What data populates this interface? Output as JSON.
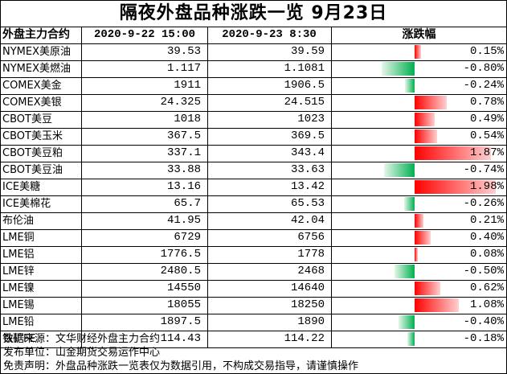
{
  "chart_data": {
    "type": "table",
    "title": "隔夜外盘品种涨跌一览 9月23日",
    "columns": [
      "外盘主力合约",
      "2020-9-22 15:00",
      "2020-9-23 8:30",
      "涨跌幅"
    ],
    "rows": [
      {
        "name": "NYMEX美原油",
        "prev": "39.53",
        "curr": "39.59",
        "change_label": "0.15%",
        "change": 0.15
      },
      {
        "name": "NYMEX美燃油",
        "prev": "1.117",
        "curr": "1.1081",
        "change_label": "-0.80%",
        "change": -0.8
      },
      {
        "name": "COMEX美金",
        "prev": "1911",
        "curr": "1906.5",
        "change_label": "-0.24%",
        "change": -0.24
      },
      {
        "name": "COMEX美银",
        "prev": "24.325",
        "curr": "24.515",
        "change_label": "0.78%",
        "change": 0.78
      },
      {
        "name": "CBOT美豆",
        "prev": "1018",
        "curr": "1023",
        "change_label": "0.49%",
        "change": 0.49
      },
      {
        "name": "CBOT美玉米",
        "prev": "367.5",
        "curr": "369.5",
        "change_label": "0.54%",
        "change": 0.54
      },
      {
        "name": "CBOT美豆粕",
        "prev": "337.1",
        "curr": "343.4",
        "change_label": "1.87%",
        "change": 1.87
      },
      {
        "name": "CBOT美豆油",
        "prev": "33.88",
        "curr": "33.63",
        "change_label": "-0.74%",
        "change": -0.74
      },
      {
        "name": "ICE美糖",
        "prev": "13.16",
        "curr": "13.42",
        "change_label": "1.98%",
        "change": 1.98
      },
      {
        "name": "ICE美棉花",
        "prev": "65.7",
        "curr": "65.53",
        "change_label": "-0.26%",
        "change": -0.26
      },
      {
        "name": "布伦油",
        "prev": "41.95",
        "curr": "42.04",
        "change_label": "0.21%",
        "change": 0.21
      },
      {
        "name": "LME铜",
        "prev": "6729",
        "curr": "6756",
        "change_label": "0.40%",
        "change": 0.4
      },
      {
        "name": "LME铝",
        "prev": "1776.5",
        "curr": "1778",
        "change_label": "0.08%",
        "change": 0.08
      },
      {
        "name": "LME锌",
        "prev": "2480.5",
        "curr": "2468",
        "change_label": "-0.50%",
        "change": -0.5
      },
      {
        "name": "LME镍",
        "prev": "14550",
        "curr": "14640",
        "change_label": "0.62%",
        "change": 0.62
      },
      {
        "name": "LME锡",
        "prev": "18055",
        "curr": "18250",
        "change_label": "1.08%",
        "change": 1.08
      },
      {
        "name": "LME铅",
        "prev": "1897.5",
        "curr": "1890",
        "change_label": "-0.40%",
        "change": -0.4
      },
      {
        "name": "铁矿FE",
        "prev": "114.43",
        "curr": "114.22",
        "change_label": "-0.18%",
        "change": -0.18
      }
    ],
    "colors": {
      "up": "#ff0000",
      "down": "#00b050"
    }
  },
  "footer": {
    "source": "数据来源：文华财经外盘主力合约",
    "publisher": "发布单位：山金期货交易运作中心",
    "disclaimer": "免责声明：外盘品种涨跌一览表仅为数据引用，不构成交易指导，请谨慎操作"
  }
}
